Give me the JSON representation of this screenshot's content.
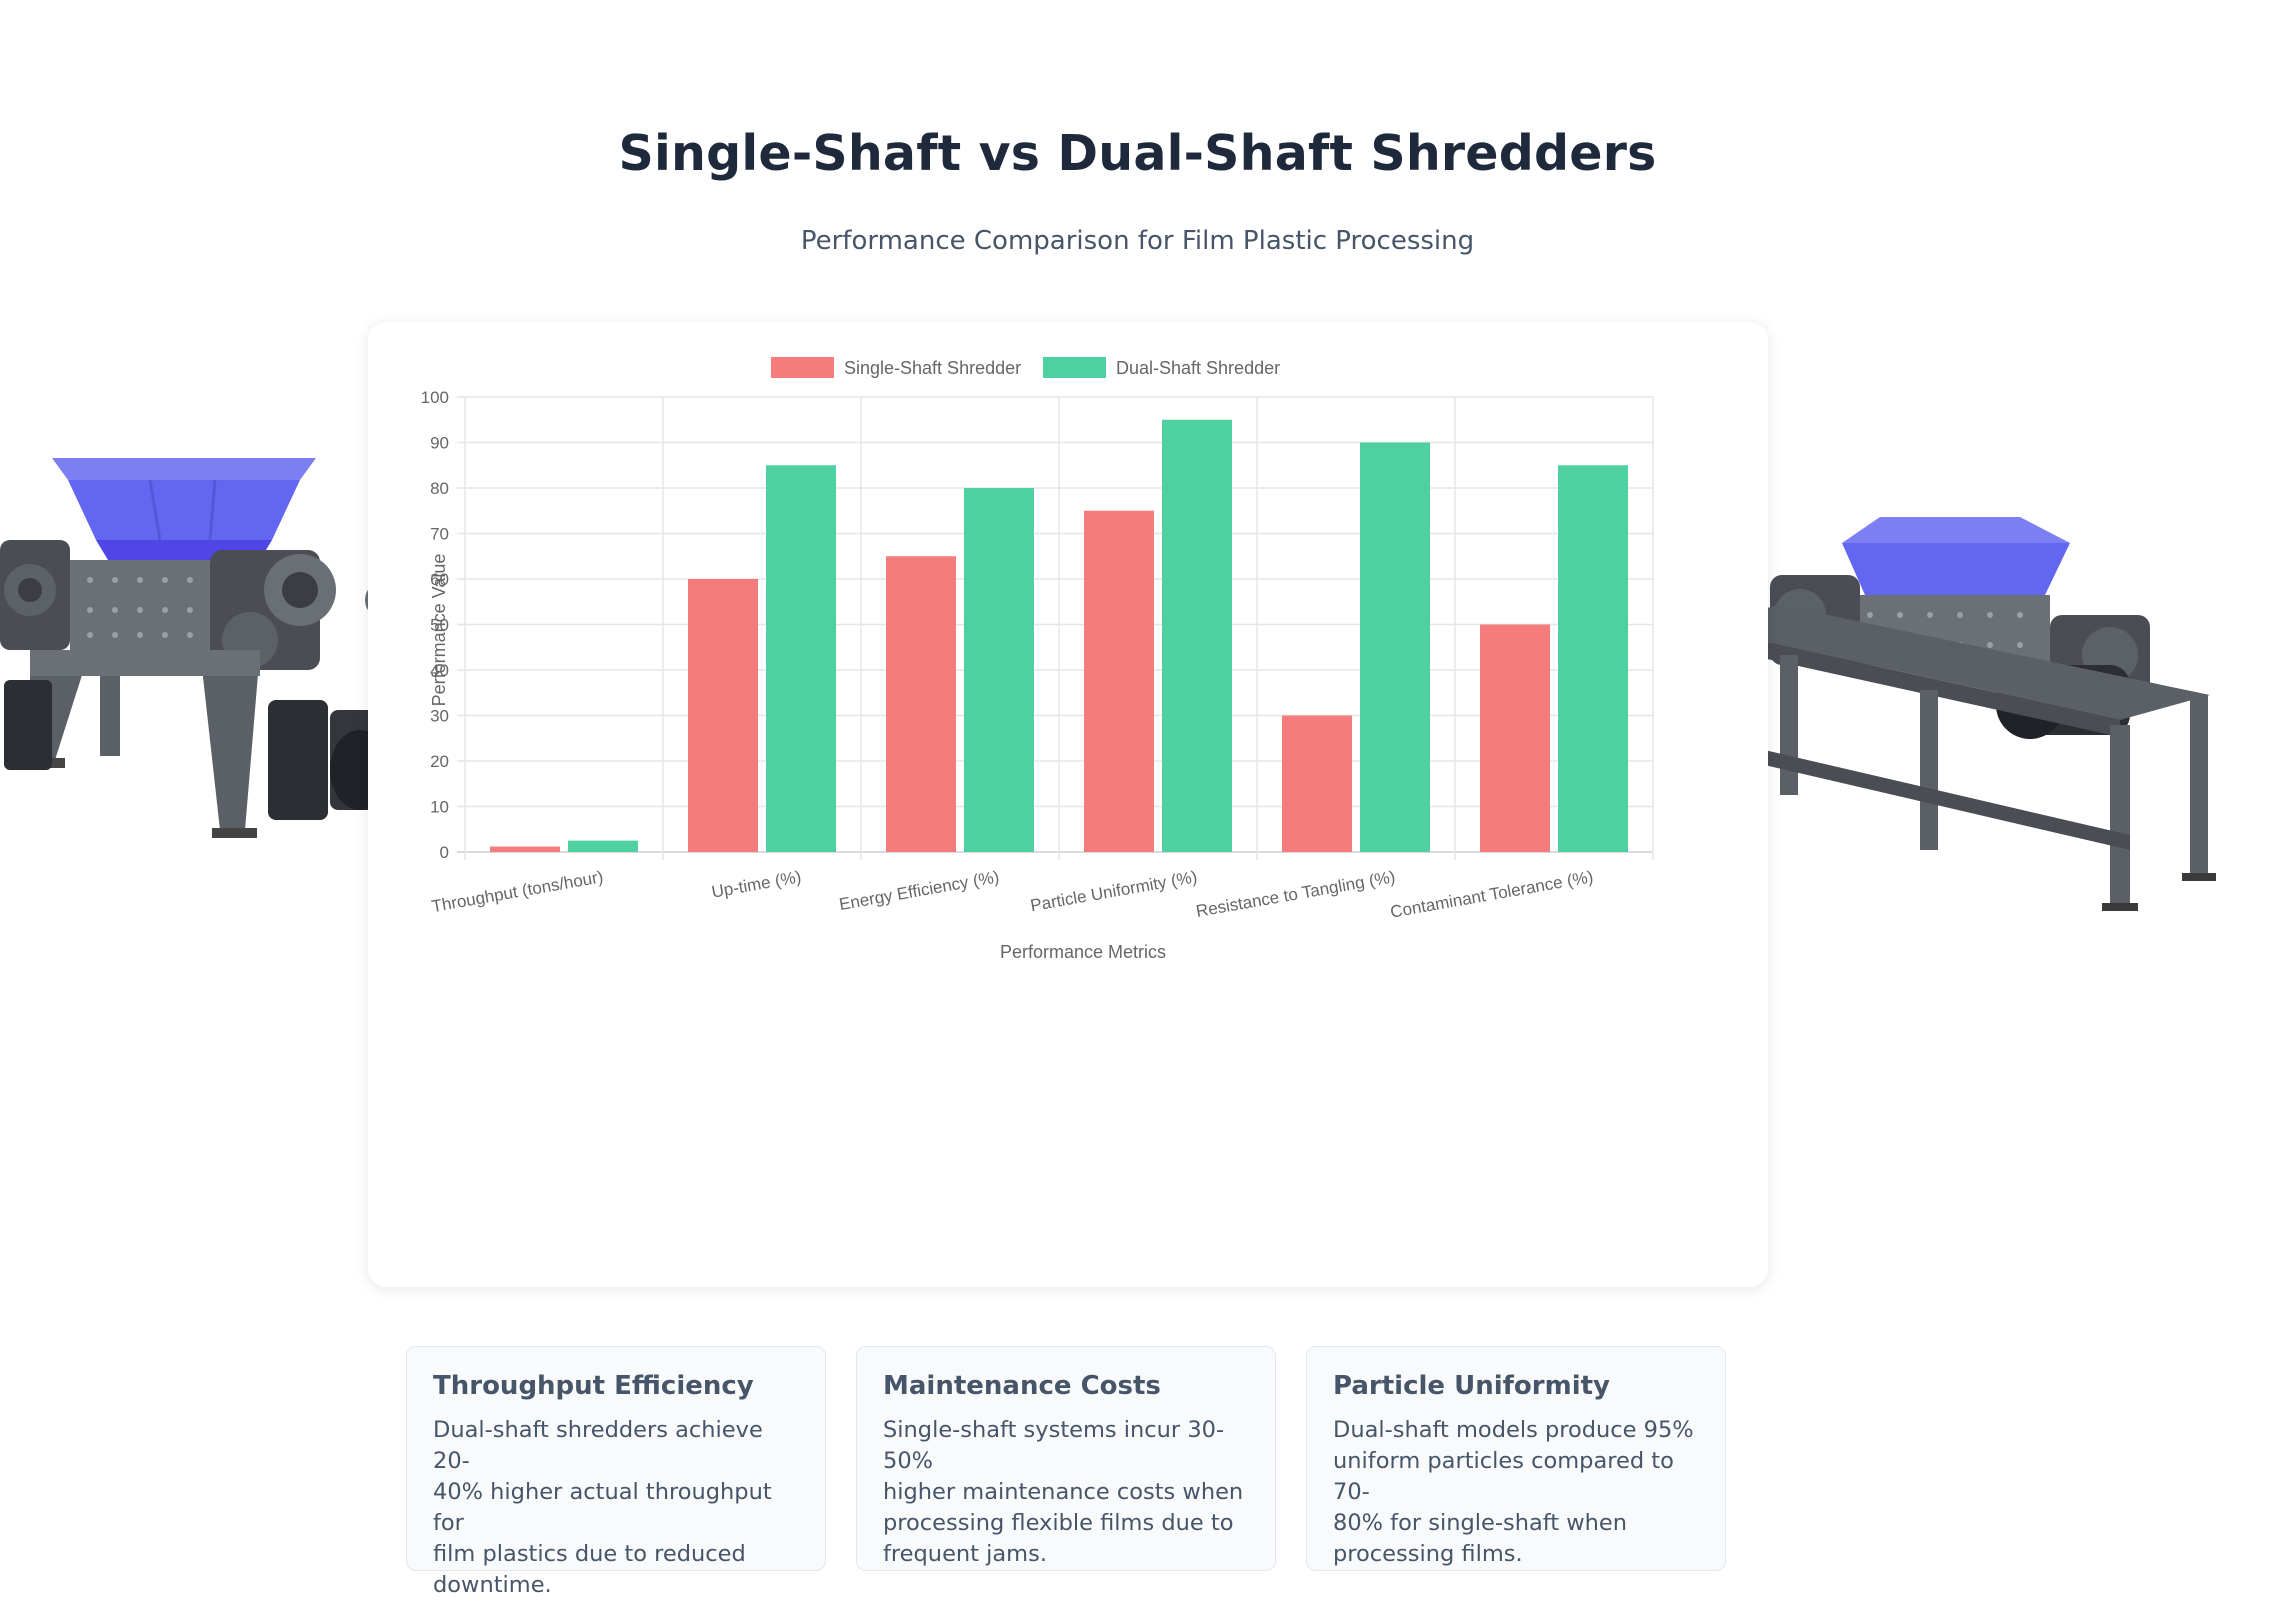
{
  "header": {
    "title": "Single-Shaft vs Dual-Shaft Shredders",
    "subtitle": "Performance Comparison for Film Plastic Processing"
  },
  "chart_data": {
    "type": "bar",
    "categories": [
      "Throughput (tons/hour)",
      "Up-time (%)",
      "Energy Efficiency (%)",
      "Particle Uniformity (%)",
      "Resistance to Tangling (%)",
      "Contaminant Tolerance (%)"
    ],
    "series": [
      {
        "name": "Single-Shaft Shredder",
        "color": "#f47c7c",
        "values": [
          1.2,
          60,
          65,
          75,
          30,
          50
        ]
      },
      {
        "name": "Dual-Shaft Shredder",
        "color": "#4fd0a0",
        "values": [
          2.5,
          85,
          80,
          95,
          90,
          85
        ]
      }
    ],
    "yticks": [
      0,
      10,
      20,
      30,
      40,
      50,
      60,
      70,
      80,
      90,
      100
    ],
    "ylim": [
      0,
      100
    ],
    "xlabel": "Performance Metrics",
    "ylabel": "Performance Value",
    "legend_position": "top",
    "grid": true
  },
  "info_cards": [
    {
      "title": "Throughput Efficiency",
      "lines": [
        "Dual-shaft shredders achieve 20-",
        "40% higher actual throughput for",
        "film plastics due to reduced",
        "downtime."
      ]
    },
    {
      "title": "Maintenance Costs",
      "lines": [
        "Single-shaft systems incur 30-50%",
        "higher maintenance costs when",
        "processing flexible films due to",
        "frequent jams."
      ]
    },
    {
      "title": "Particle Uniformity",
      "lines": [
        "Dual-shaft models produce 95%",
        "uniform particles compared to 70-",
        "80% for single-shaft when",
        "processing films."
      ]
    }
  ],
  "colors": {
    "hopper": "#6366f1",
    "frame": "#555a60",
    "motor": "#2b2e33"
  }
}
